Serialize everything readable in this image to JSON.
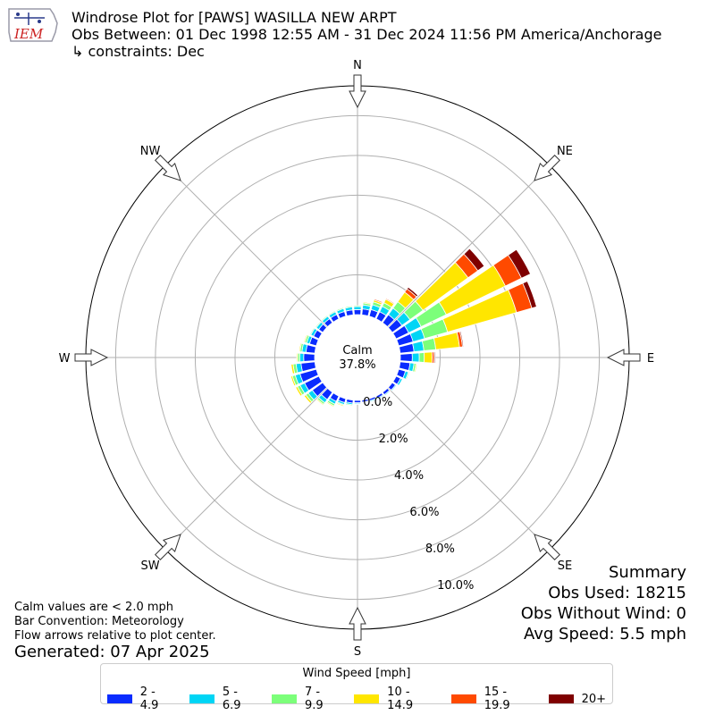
{
  "header": {
    "logo_text": "IEM",
    "title_line1": "Windrose Plot for [PAWS] WASILLA NEW ARPT",
    "title_line2": "Obs Between: 01 Dec 1998 12:55 AM - 31 Dec 2024 11:56 PM America/Anchorage",
    "title_line3": "↳ constraints: Dec"
  },
  "summary": {
    "heading": "Summary",
    "obs_used": "Obs Used: 18215",
    "obs_without_wind": "Obs Without Wind: 0",
    "avg_speed": "Avg Speed: 5.5 mph"
  },
  "notes": {
    "calm_note": "Calm values are < 2.0 mph",
    "bar_convention": "Bar Convention: Meteorology",
    "flow_note": "Flow arrows relative to plot center.",
    "generated": "Generated: 07 Apr 2025"
  },
  "legend": {
    "title": "Wind Speed [mph]",
    "items": [
      {
        "label": "2 - 4.9",
        "color": "#0a2cff"
      },
      {
        "label": "5 - 6.9",
        "color": "#00d5f5"
      },
      {
        "label": "7 - 9.9",
        "color": "#7cff7a"
      },
      {
        "label": "10 - 14.9",
        "color": "#ffe600"
      },
      {
        "label": "15 - 19.9",
        "color": "#ff4a00"
      },
      {
        "label": "20+",
        "color": "#7f0000"
      }
    ]
  },
  "chart_data": {
    "type": "windrose",
    "calm_label": "Calm",
    "calm_value": "37.8%",
    "radial_ticks": [
      "0.0%",
      "2.0%",
      "4.0%",
      "6.0%",
      "8.0%",
      "10.0%"
    ],
    "radial_max": 11.5,
    "compass_labels": [
      "N",
      "NE",
      "E",
      "SE",
      "S",
      "SW",
      "W",
      "NW"
    ],
    "directions": [
      0,
      10,
      20,
      30,
      40,
      50,
      60,
      70,
      80,
      90,
      100,
      110,
      120,
      130,
      140,
      150,
      160,
      170,
      180,
      190,
      200,
      210,
      220,
      230,
      240,
      250,
      260,
      270,
      280,
      290,
      300,
      310,
      320,
      330,
      340,
      350
    ],
    "speed_bins": [
      "2 - 4.9",
      "5 - 6.9",
      "7 - 9.9",
      "10 - 14.9",
      "15 - 19.9",
      "20+"
    ],
    "values": [
      [
        0.25,
        0.15,
        0.05,
        0.0,
        0.0,
        0.0
      ],
      [
        0.3,
        0.2,
        0.1,
        0.05,
        0.0,
        0.0
      ],
      [
        0.35,
        0.25,
        0.15,
        0.1,
        0.05,
        0.0
      ],
      [
        0.4,
        0.3,
        0.2,
        0.2,
        0.05,
        0.02
      ],
      [
        0.5,
        0.4,
        0.4,
        0.6,
        0.2,
        0.1
      ],
      [
        0.6,
        0.5,
        0.8,
        2.8,
        0.6,
        0.4
      ],
      [
        0.7,
        0.7,
        1.4,
        3.3,
        0.9,
        0.5
      ],
      [
        0.75,
        0.6,
        1.2,
        3.6,
        0.8,
        0.25
      ],
      [
        0.7,
        0.5,
        0.6,
        1.2,
        0.15,
        0.05
      ],
      [
        0.6,
        0.35,
        0.25,
        0.4,
        0.1,
        0.05
      ],
      [
        0.5,
        0.2,
        0.1,
        0.05,
        0.0,
        0.0
      ],
      [
        0.35,
        0.15,
        0.05,
        0.0,
        0.0,
        0.0
      ],
      [
        0.25,
        0.1,
        0.0,
        0.0,
        0.0,
        0.0
      ],
      [
        0.2,
        0.05,
        0.0,
        0.0,
        0.0,
        0.0
      ],
      [
        0.15,
        0.05,
        0.0,
        0.0,
        0.0,
        0.0
      ],
      [
        0.12,
        0.05,
        0.0,
        0.0,
        0.0,
        0.0
      ],
      [
        0.1,
        0.05,
        0.0,
        0.0,
        0.0,
        0.0
      ],
      [
        0.1,
        0.03,
        0.0,
        0.0,
        0.0,
        0.0
      ],
      [
        0.12,
        0.05,
        0.03,
        0.0,
        0.0,
        0.0
      ],
      [
        0.15,
        0.08,
        0.05,
        0.03,
        0.0,
        0.0
      ],
      [
        0.2,
        0.1,
        0.05,
        0.05,
        0.0,
        0.0
      ],
      [
        0.3,
        0.15,
        0.1,
        0.05,
        0.0,
        0.0
      ],
      [
        0.45,
        0.2,
        0.1,
        0.05,
        0.0,
        0.0
      ],
      [
        0.65,
        0.25,
        0.15,
        0.1,
        0.0,
        0.0
      ],
      [
        0.8,
        0.25,
        0.15,
        0.1,
        0.0,
        0.0
      ],
      [
        0.85,
        0.25,
        0.15,
        0.08,
        0.0,
        0.0
      ],
      [
        0.7,
        0.25,
        0.15,
        0.1,
        0.0,
        0.0
      ],
      [
        0.55,
        0.2,
        0.1,
        0.05,
        0.0,
        0.0
      ],
      [
        0.45,
        0.2,
        0.1,
        0.05,
        0.0,
        0.0
      ],
      [
        0.35,
        0.15,
        0.1,
        0.05,
        0.0,
        0.0
      ],
      [
        0.3,
        0.15,
        0.05,
        0.0,
        0.0,
        0.0
      ],
      [
        0.25,
        0.15,
        0.05,
        0.0,
        0.0,
        0.0
      ],
      [
        0.25,
        0.15,
        0.05,
        0.0,
        0.0,
        0.0
      ],
      [
        0.25,
        0.15,
        0.05,
        0.0,
        0.0,
        0.0
      ],
      [
        0.25,
        0.15,
        0.05,
        0.0,
        0.0,
        0.0
      ],
      [
        0.25,
        0.15,
        0.05,
        0.0,
        0.0,
        0.0
      ]
    ]
  }
}
